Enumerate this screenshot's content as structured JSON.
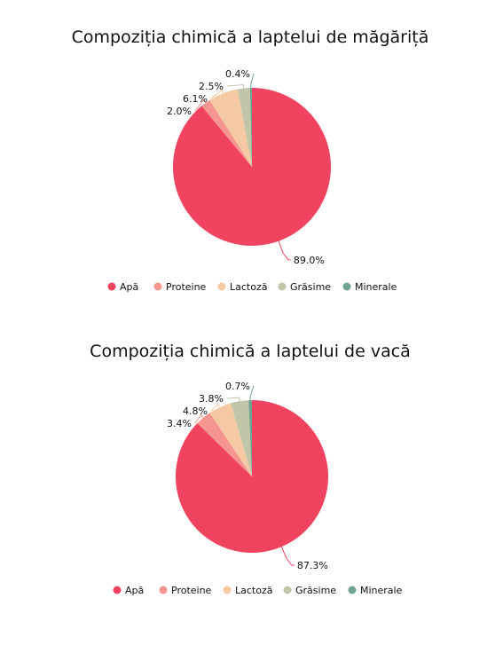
{
  "chart_data": [
    {
      "type": "pie",
      "title": "Compoziția chimică a laptelui de măgăriță",
      "categories": [
        "Apă",
        "Proteine",
        "Lactoză",
        "Grăsime",
        "Minerale"
      ],
      "values": [
        89.0,
        2.0,
        6.1,
        2.5,
        0.4
      ],
      "labels": [
        "89.0%",
        "2.0%",
        "6.1%",
        "2.5%",
        "0.4%"
      ],
      "colors": [
        "#f0435f",
        "#f49590",
        "#f4c9a4",
        "#c2c6a8",
        "#6fa48f"
      ],
      "legend": "bottom"
    },
    {
      "type": "pie",
      "title": "Compoziția chimică a laptelui de vacă",
      "categories": [
        "Apă",
        "Proteine",
        "Lactoză",
        "Grăsime",
        "Minerale"
      ],
      "values": [
        87.3,
        3.4,
        4.8,
        3.8,
        0.7
      ],
      "labels": [
        "87.3%",
        "3.4%",
        "4.8%",
        "3.8%",
        "0.7%"
      ],
      "colors": [
        "#f0435f",
        "#f49590",
        "#f4c9a4",
        "#c2c6a8",
        "#6fa48f"
      ],
      "legend": "bottom"
    }
  ]
}
